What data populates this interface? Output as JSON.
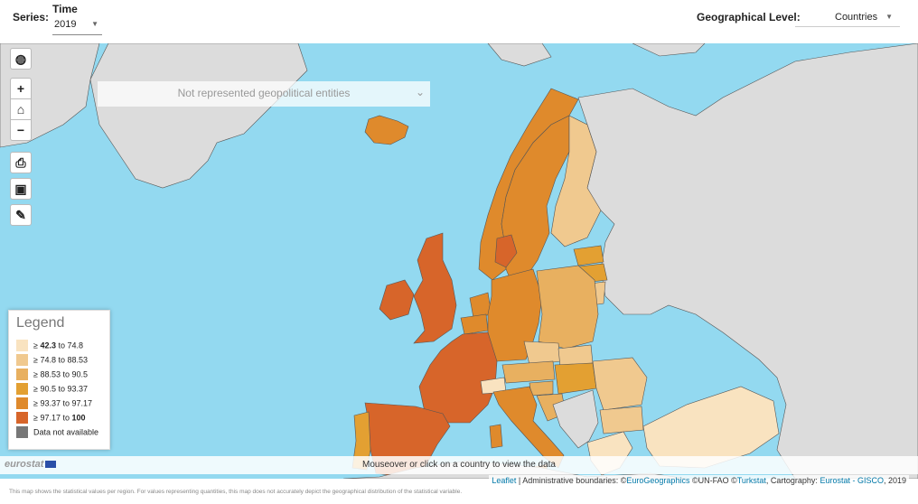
{
  "topbar": {
    "series_label": "Series:",
    "time_label": "Time",
    "time_value": "2019",
    "geo_level_label": "Geographical Level:",
    "geo_level_value": "Countries"
  },
  "map": {
    "geopolitical_label": "Not represented geopolitical entities",
    "controls": {
      "globe_icon": "globe-icon",
      "zoom_in": "+",
      "home_icon": "home-icon",
      "zoom_out": "−",
      "print_icon": "print-icon",
      "image_icon": "image-icon",
      "brush_icon": "brush-icon"
    },
    "colors": {
      "sea": "#93d9f0",
      "non_eu_land": "#dcdcdc",
      "not_available": "#777777"
    }
  },
  "legend": {
    "title": "Legend",
    "items": [
      {
        "prefix": "≥ ",
        "low": "42.3",
        "mid": " to ",
        "high": "74.8",
        "color": "#f9e3c0"
      },
      {
        "prefix": "≥ ",
        "low": "74.8",
        "mid": " to ",
        "high": "88.53",
        "color": "#f0c98f"
      },
      {
        "prefix": "≥ ",
        "low": "88.53",
        "mid": " to ",
        "high": "90.5",
        "color": "#e8b060"
      },
      {
        "prefix": "≥ ",
        "low": "90.5",
        "mid": " to ",
        "high": "93.37",
        "color": "#e3a032"
      },
      {
        "prefix": "≥ ",
        "low": "93.37",
        "mid": " to ",
        "high": "97.17",
        "color": "#df8a2c"
      },
      {
        "prefix": "≥ ",
        "low": "97.17",
        "mid": " to ",
        "high": "100",
        "color": "#d7652a"
      }
    ],
    "not_available_label": "Data not available"
  },
  "info": {
    "hover_text": "Mouseover or click on a country to view the data",
    "logo": "eurostat"
  },
  "attribution": {
    "leaflet": "Leaflet",
    "admin": " | Administrative boundaries: ©",
    "eurogeo": "EuroGeographics",
    "unfao": " ©UN-FAO ©",
    "turkstat": "Turkstat",
    "carto": ", Cartography: ",
    "eurostat_gisco": "Eurostat - GISCO",
    "year": ", 2019"
  },
  "footnote": "This map shows the statistical values per region. For values representing quantities, this map does not accurately depict the geographical distribution of the statistical variable."
}
